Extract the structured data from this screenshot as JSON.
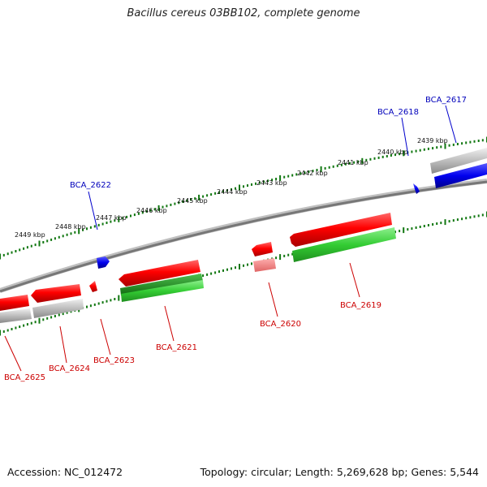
{
  "title": "Bacillus cereus 03BB102, complete genome",
  "footer": {
    "accession": "Accession: NC_012472",
    "summary": "Topology: circular; Length: 5,269,628 bp; Genes: 5,544"
  },
  "kbp_labels": [
    "2439 kbp",
    "2440 kbp",
    "2441 kbp",
    "2442 kbp",
    "2443 kbp",
    "2444 kbp",
    "2445 kbp",
    "2446 kbp",
    "2447 kbp",
    "2448 kbp",
    "2449 kbp"
  ],
  "genes": [
    {
      "name": "BCA_2617",
      "color": "#0000cc",
      "strand": "forward"
    },
    {
      "name": "BCA_2618",
      "color": "#0000cc",
      "strand": "forward"
    },
    {
      "name": "BCA_2619",
      "color": "#cc0000",
      "strand": "reverse"
    },
    {
      "name": "BCA_2620",
      "color": "#cc0000",
      "strand": "reverse"
    },
    {
      "name": "BCA_2621",
      "color": "#cc0000",
      "strand": "reverse"
    },
    {
      "name": "BCA_2622",
      "color": "#0000cc",
      "strand": "forward"
    },
    {
      "name": "BCA_2623",
      "color": "#cc0000",
      "strand": "reverse"
    },
    {
      "name": "BCA_2624",
      "color": "#cc0000",
      "strand": "reverse"
    },
    {
      "name": "BCA_2625",
      "color": "#cc0000",
      "strand": "reverse"
    }
  ],
  "colors": {
    "forward_gene": "#0000ee",
    "reverse_gene": "#ee0000",
    "rna_feature": "#33bb33",
    "backbone": "#888888",
    "ticks": "#117711",
    "label_forward": "#0000bb",
    "label_reverse": "#cc0000"
  }
}
